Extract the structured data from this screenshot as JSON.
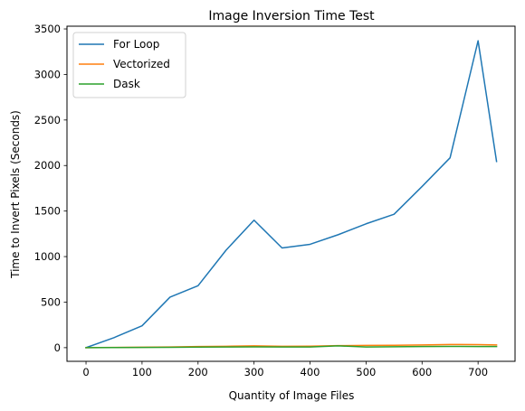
{
  "chart_data": {
    "type": "line",
    "title": "Image Inversion Time Test",
    "xlabel": "Quantity of Image Files",
    "ylabel": "Time to Invert Pixels (Seconds)",
    "xlim": [
      -34,
      766
    ],
    "ylim": [
      -150,
      3530
    ],
    "xticks": [
      0,
      100,
      200,
      300,
      400,
      500,
      600,
      700
    ],
    "yticks": [
      0,
      500,
      1000,
      1500,
      2000,
      2500,
      3000,
      3500
    ],
    "grid": false,
    "legend_position": "top-left",
    "x": [
      0,
      50,
      100,
      150,
      200,
      250,
      300,
      350,
      400,
      450,
      500,
      550,
      600,
      650,
      700,
      733
    ],
    "series": [
      {
        "name": "For Loop",
        "color": "#1f77b4",
        "values": [
          0,
          110,
          240,
          555,
          680,
          1070,
          1400,
          1095,
          1135,
          1240,
          1360,
          1465,
          1770,
          2085,
          3370,
          2045
        ]
      },
      {
        "name": "Vectorized",
        "color": "#ff7f0e",
        "values": [
          0,
          3,
          5,
          8,
          12,
          15,
          20,
          15,
          16,
          22,
          25,
          26,
          30,
          35,
          33,
          30
        ]
      },
      {
        "name": "Dask",
        "color": "#2ca02c",
        "values": [
          0,
          1,
          2,
          4,
          6,
          7,
          9,
          8,
          8,
          20,
          8,
          10,
          12,
          14,
          12,
          12
        ]
      }
    ]
  }
}
